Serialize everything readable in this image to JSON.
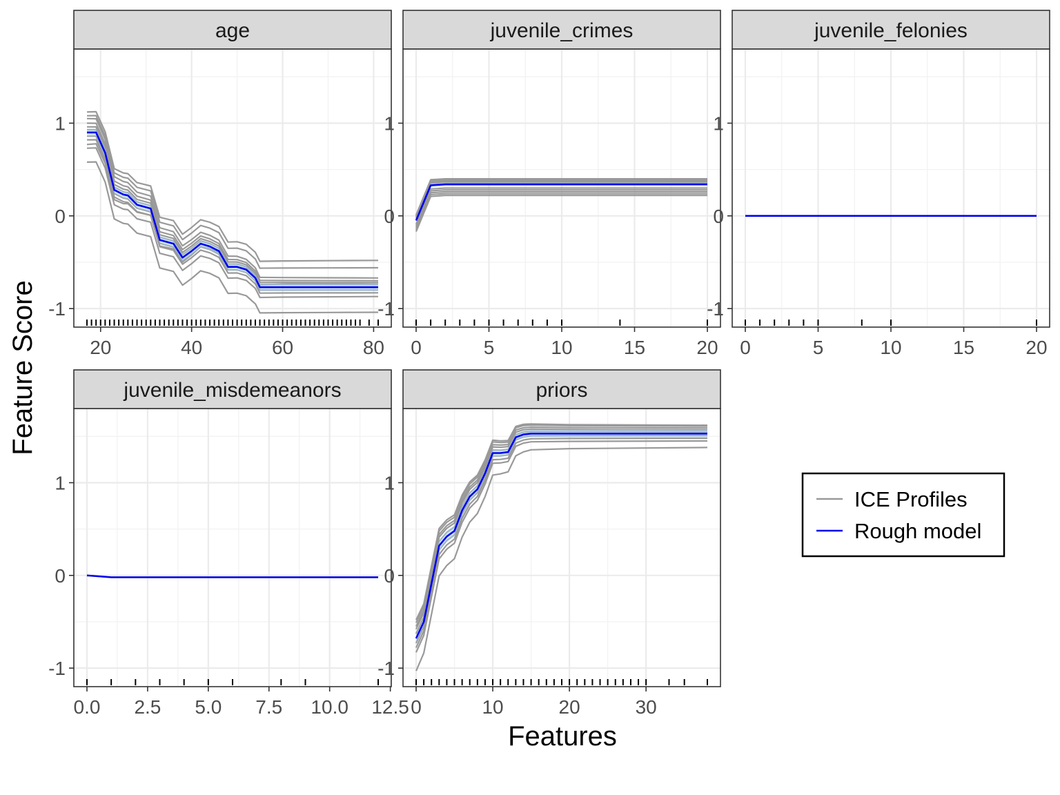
{
  "figure": {
    "xlabel": "Features",
    "ylabel": "Feature Score",
    "legend": {
      "placement": "right",
      "entries": [
        {
          "name": "ICE Profiles",
          "color": "#999999"
        },
        {
          "name": "Rough model",
          "color": "#0000ee"
        }
      ]
    },
    "colors": {
      "ice": "#999999",
      "band": "#a6cee3",
      "mean": "#0000ee",
      "strip": "#d9d9d9"
    }
  },
  "chart_data": [
    {
      "type": "line",
      "title": "age",
      "xlim": [
        17,
        81
      ],
      "ylim": [
        -1.2,
        1.8
      ],
      "xticks": [
        20,
        40,
        60,
        80
      ],
      "xtick_labels": [
        "20",
        "40",
        "60",
        "80"
      ],
      "yticks": [
        -1,
        0,
        1
      ],
      "ytick_labels": [
        "-1",
        "0",
        "1"
      ],
      "rug": [
        17,
        18,
        19,
        20,
        21,
        22,
        23,
        24,
        25,
        26,
        27,
        28,
        29,
        30,
        31,
        32,
        33,
        34,
        35,
        36,
        37,
        38,
        39,
        40,
        41,
        42,
        43,
        44,
        45,
        46,
        47,
        48,
        49,
        50,
        51,
        52,
        53,
        54,
        55,
        56,
        57,
        58,
        59,
        60,
        61,
        62,
        63,
        64,
        65,
        66,
        67,
        68,
        69,
        70,
        71,
        72,
        73,
        74,
        75,
        76,
        77,
        79,
        81
      ],
      "x": [
        17,
        19,
        21,
        23,
        25,
        26,
        28,
        31,
        33,
        36,
        38,
        40,
        42,
        44,
        46,
        48,
        50,
        52,
        54,
        55,
        60,
        70,
        81
      ],
      "series": [
        {
          "name": "Rough model",
          "values": [
            0.9,
            0.9,
            0.68,
            0.28,
            0.23,
            0.22,
            0.12,
            0.08,
            -0.26,
            -0.3,
            -0.45,
            -0.38,
            -0.3,
            -0.33,
            -0.38,
            -0.55,
            -0.55,
            -0.58,
            -0.67,
            -0.77,
            -0.77,
            -0.77,
            -0.77
          ]
        }
      ],
      "band_lower": [
        0.86,
        0.86,
        0.63,
        0.24,
        0.19,
        0.18,
        0.08,
        0.04,
        -0.3,
        -0.34,
        -0.49,
        -0.42,
        -0.34,
        -0.37,
        -0.42,
        -0.59,
        -0.59,
        -0.62,
        -0.71,
        -0.81,
        -0.81,
        -0.81,
        -0.81
      ],
      "band_upper": [
        0.94,
        0.94,
        0.73,
        0.32,
        0.27,
        0.26,
        0.16,
        0.12,
        -0.22,
        -0.26,
        -0.41,
        -0.34,
        -0.26,
        -0.29,
        -0.34,
        -0.51,
        -0.51,
        -0.54,
        -0.63,
        -0.73,
        -0.73,
        -0.73,
        -0.73
      ],
      "ice_offsets": [
        -0.32,
        -0.17,
        -0.08,
        -0.04,
        0.03,
        0.06,
        0.1,
        0.15,
        0.18,
        0.22,
        -0.13
      ],
      "ice_tail": [
        -0.27,
        -0.1,
        -0.06,
        -0.03,
        0.03,
        0.05,
        0.07,
        0.1,
        0.21,
        0.29,
        0.05
      ]
    },
    {
      "type": "line",
      "title": "juvenile_crimes",
      "xlim": [
        0,
        20
      ],
      "ylim": [
        -1.2,
        1.8
      ],
      "xticks": [
        0,
        5,
        10,
        15,
        20
      ],
      "xtick_labels": [
        "0",
        "5",
        "10",
        "15",
        "20"
      ],
      "yticks": [
        -1,
        0,
        1
      ],
      "ytick_labels": [
        "-1",
        "0",
        "1"
      ],
      "rug": [
        0,
        1,
        2,
        3,
        4,
        5,
        6,
        7,
        8,
        9,
        10,
        14,
        20
      ],
      "x": [
        0,
        1,
        2,
        20
      ],
      "series": [
        {
          "name": "Rough model",
          "values": [
            -0.05,
            0.33,
            0.34,
            0.34
          ]
        }
      ],
      "band_lower": [
        -0.05,
        0.31,
        0.32,
        0.32
      ],
      "band_upper": [
        -0.05,
        0.35,
        0.36,
        0.36
      ],
      "ice_offsets": [
        -0.12,
        -0.1,
        -0.08,
        -0.06,
        -0.04,
        0.02,
        0.03,
        0.04,
        0.05,
        0.06
      ],
      "ice_tail": [
        -0.12,
        -0.1,
        -0.08,
        -0.06,
        -0.04,
        0.02,
        0.03,
        0.04,
        0.05,
        0.06
      ]
    },
    {
      "type": "line",
      "title": "juvenile_felonies",
      "xlim": [
        0,
        20
      ],
      "ylim": [
        -1.2,
        1.8
      ],
      "xticks": [
        0,
        5,
        10,
        15,
        20
      ],
      "xtick_labels": [
        "0",
        "5",
        "10",
        "15",
        "20"
      ],
      "yticks": [
        -1,
        0,
        1
      ],
      "ytick_labels": [
        "-1",
        "0",
        "1"
      ],
      "rug": [
        0,
        1,
        2,
        3,
        4,
        5,
        8,
        10,
        20
      ],
      "x": [
        0,
        20
      ],
      "series": [
        {
          "name": "Rough model",
          "values": [
            0,
            0
          ]
        }
      ],
      "band_lower": [
        0,
        0
      ],
      "band_upper": [
        0,
        0
      ],
      "ice_offsets": [
        0
      ],
      "ice_tail": [
        0
      ]
    },
    {
      "type": "line",
      "title": "juvenile_misdemeanors",
      "xlim": [
        0,
        12
      ],
      "ylim": [
        -1.2,
        1.8
      ],
      "xticks": [
        0,
        2.5,
        5,
        7.5,
        10,
        12.5
      ],
      "xtick_labels": [
        "0.0",
        "2.5",
        "5.0",
        "7.5",
        "10.0",
        "12.5"
      ],
      "yticks": [
        -1,
        0,
        1
      ],
      "ytick_labels": [
        "-1",
        "0",
        "1"
      ],
      "rug": [
        0,
        1,
        2,
        3,
        4,
        5,
        6,
        8,
        9,
        12
      ],
      "x": [
        0,
        1,
        12
      ],
      "series": [
        {
          "name": "Rough model",
          "values": [
            0,
            -0.02,
            -0.02
          ]
        }
      ],
      "band_lower": [
        0,
        -0.02,
        -0.02
      ],
      "band_upper": [
        0,
        -0.02,
        -0.02
      ],
      "ice_offsets": [
        0
      ],
      "ice_tail": [
        0
      ]
    },
    {
      "type": "line",
      "title": "priors",
      "xlim": [
        0,
        38
      ],
      "ylim": [
        -1.2,
        1.8
      ],
      "xticks": [
        0,
        10,
        20,
        30
      ],
      "xtick_labels": [
        "0",
        "10",
        "20",
        "30"
      ],
      "yticks": [
        -1,
        0,
        1
      ],
      "ytick_labels": [
        "-1",
        "0",
        "1"
      ],
      "rug": [
        0,
        1,
        2,
        3,
        4,
        5,
        6,
        7,
        8,
        9,
        10,
        11,
        12,
        13,
        14,
        15,
        16,
        17,
        18,
        19,
        20,
        21,
        22,
        23,
        24,
        25,
        26,
        27,
        28,
        29,
        30,
        33,
        35,
        38
      ],
      "x": [
        0,
        1,
        3,
        4,
        5,
        6,
        7,
        8,
        9,
        10,
        11,
        12,
        13,
        14,
        15,
        20,
        38
      ],
      "series": [
        {
          "name": "Rough model",
          "values": [
            -0.68,
            -0.5,
            0.32,
            0.42,
            0.48,
            0.7,
            0.85,
            0.93,
            1.1,
            1.32,
            1.32,
            1.33,
            1.49,
            1.52,
            1.53,
            1.53,
            1.53
          ]
        }
      ],
      "band_lower": [
        -0.72,
        -0.54,
        0.26,
        0.36,
        0.42,
        0.65,
        0.8,
        0.89,
        1.06,
        1.28,
        1.28,
        1.29,
        1.45,
        1.48,
        1.49,
        1.49,
        1.49
      ],
      "band_upper": [
        -0.64,
        -0.46,
        0.38,
        0.48,
        0.54,
        0.75,
        0.9,
        0.97,
        1.14,
        1.36,
        1.36,
        1.37,
        1.53,
        1.56,
        1.57,
        1.57,
        1.57
      ],
      "ice_offsets": [
        -0.35,
        -0.15,
        -0.1,
        -0.05,
        0.05,
        0.1,
        0.13,
        0.17,
        0.2
      ],
      "ice_tail": [
        -0.15,
        -0.08,
        -0.05,
        -0.02,
        0.02,
        0.04,
        0.06,
        0.08,
        0.09
      ]
    }
  ]
}
